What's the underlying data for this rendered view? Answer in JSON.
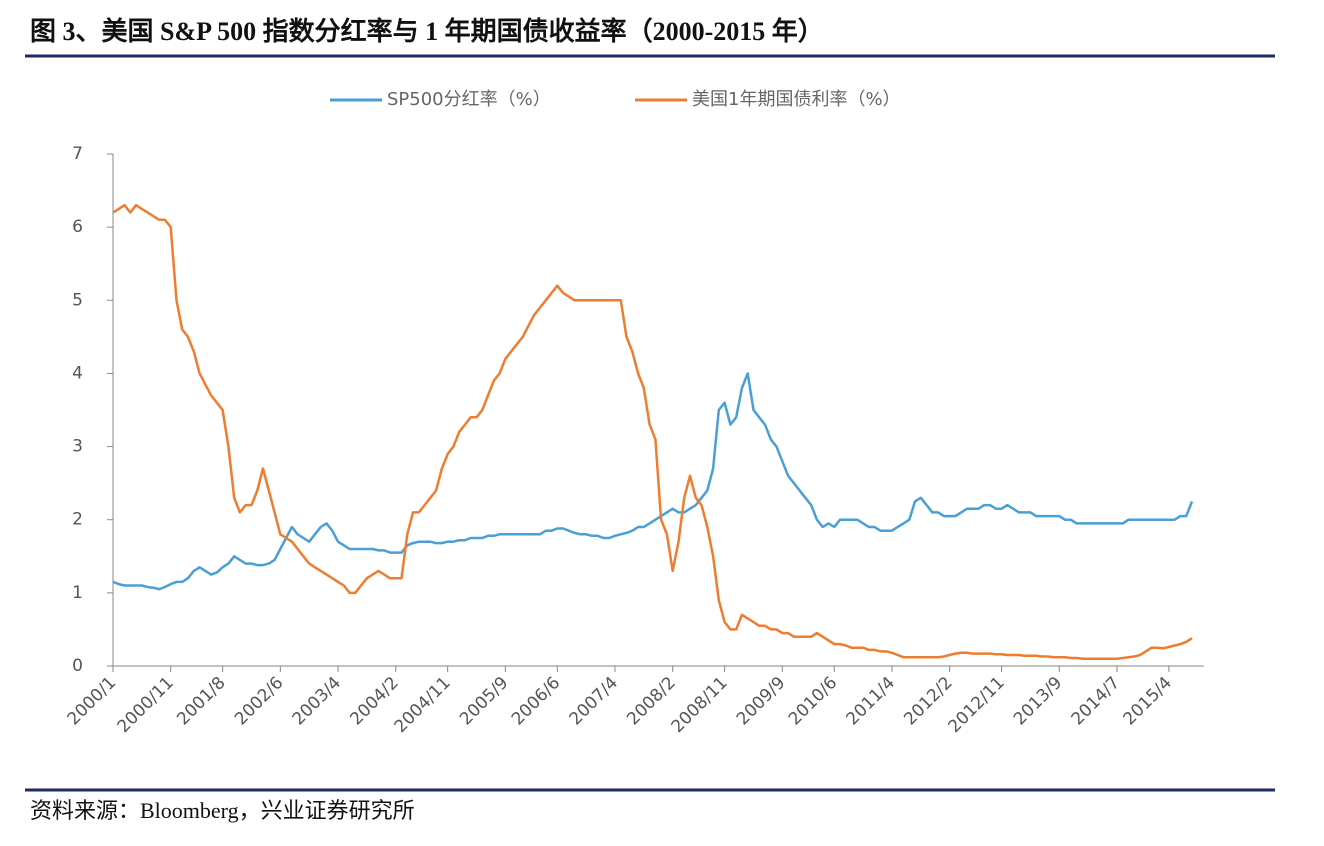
{
  "chart_data": {
    "type": "line",
    "title": "图 3、美国 S&P 500 指数分红率与 1 年期国债收益率（2000-2015 年）",
    "source": "资料来源：Bloomberg，兴业证券研究所",
    "categories": [
      "2000/1",
      null,
      null,
      null,
      null,
      null,
      null,
      null,
      null,
      null,
      "2000/11",
      null,
      null,
      null,
      null,
      null,
      null,
      null,
      null,
      "2001/8",
      null,
      null,
      null,
      null,
      null,
      null,
      null,
      null,
      null,
      "2002/6",
      null,
      null,
      null,
      null,
      null,
      null,
      null,
      null,
      null,
      "2003/4",
      null,
      null,
      null,
      null,
      null,
      null,
      null,
      null,
      null,
      "2004/2",
      null,
      null,
      null,
      null,
      null,
      null,
      null,
      null,
      "2004/11",
      null,
      null,
      null,
      null,
      null,
      null,
      null,
      null,
      null,
      "2005/9",
      null,
      null,
      null,
      null,
      null,
      null,
      null,
      null,
      "2006/6",
      null,
      null,
      null,
      null,
      null,
      null,
      null,
      null,
      null,
      "2007/4",
      null,
      null,
      null,
      null,
      null,
      null,
      null,
      null,
      null,
      "2008/2",
      null,
      null,
      null,
      null,
      null,
      null,
      null,
      null,
      "2008/11",
      null,
      null,
      null,
      null,
      null,
      null,
      null,
      null,
      null,
      "2009/9",
      null,
      null,
      null,
      null,
      null,
      null,
      null,
      null,
      "2010/6",
      null,
      null,
      null,
      null,
      null,
      null,
      null,
      null,
      null,
      "2011/4",
      null,
      null,
      null,
      null,
      null,
      null,
      null,
      null,
      null,
      "2012/2",
      null,
      null,
      null,
      null,
      null,
      null,
      null,
      null,
      "2012/11",
      null,
      null,
      null,
      null,
      null,
      null,
      null,
      null,
      null,
      "2013/9",
      null,
      null,
      null,
      null,
      null,
      null,
      null,
      null,
      null,
      "2014/7",
      null,
      null,
      null,
      null,
      null,
      null,
      null,
      null,
      "2015/4",
      null,
      null,
      null,
      null
    ],
    "series": [
      {
        "name": "SP500分红率（%）",
        "color": "#4a9fd4",
        "values": [
          1.15,
          1.12,
          1.1,
          1.1,
          1.1,
          1.1,
          1.08,
          1.07,
          1.05,
          1.08,
          1.12,
          1.15,
          1.15,
          1.2,
          1.3,
          1.35,
          1.3,
          1.25,
          1.28,
          1.35,
          1.4,
          1.5,
          1.45,
          1.4,
          1.4,
          1.38,
          1.38,
          1.4,
          1.45,
          1.6,
          1.75,
          1.9,
          1.8,
          1.75,
          1.7,
          1.8,
          1.9,
          1.95,
          1.85,
          1.7,
          1.65,
          1.6,
          1.6,
          1.6,
          1.6,
          1.6,
          1.58,
          1.58,
          1.55,
          1.55,
          1.55,
          1.65,
          1.68,
          1.7,
          1.7,
          1.7,
          1.68,
          1.68,
          1.7,
          1.7,
          1.72,
          1.72,
          1.75,
          1.75,
          1.75,
          1.78,
          1.78,
          1.8,
          1.8,
          1.8,
          1.8,
          1.8,
          1.8,
          1.8,
          1.8,
          1.85,
          1.85,
          1.88,
          1.88,
          1.85,
          1.82,
          1.8,
          1.8,
          1.78,
          1.78,
          1.75,
          1.75,
          1.78,
          1.8,
          1.82,
          1.85,
          1.9,
          1.9,
          1.95,
          2.0,
          2.05,
          2.1,
          2.15,
          2.1,
          2.1,
          2.15,
          2.2,
          2.3,
          2.4,
          2.7,
          3.5,
          3.6,
          3.3,
          3.4,
          3.8,
          4.0,
          3.5,
          3.4,
          3.3,
          3.1,
          3.0,
          2.8,
          2.6,
          2.5,
          2.4,
          2.3,
          2.2,
          2.0,
          1.9,
          1.95,
          1.9,
          2.0,
          2.0,
          2.0,
          2.0,
          1.95,
          1.9,
          1.9,
          1.85,
          1.85,
          1.85,
          1.9,
          1.95,
          2.0,
          2.25,
          2.3,
          2.2,
          2.1,
          2.1,
          2.05,
          2.05,
          2.05,
          2.1,
          2.15,
          2.15,
          2.15,
          2.2,
          2.2,
          2.15,
          2.15,
          2.2,
          2.15,
          2.1,
          2.1,
          2.1,
          2.05,
          2.05,
          2.05,
          2.05,
          2.05,
          2.0,
          2.0,
          1.95,
          1.95,
          1.95,
          1.95,
          1.95,
          1.95,
          1.95,
          1.95,
          1.95,
          2.0,
          2.0,
          2.0,
          2.0,
          2.0,
          2.0,
          2.0,
          2.0,
          2.0,
          2.05,
          2.05,
          2.25
        ]
      },
      {
        "name": "美国1年期国债利率（%）",
        "color": "#ed7d31",
        "values": [
          6.2,
          6.25,
          6.3,
          6.2,
          6.3,
          6.25,
          6.2,
          6.15,
          6.1,
          6.1,
          6.0,
          5.0,
          4.6,
          4.5,
          4.3,
          4.0,
          3.85,
          3.7,
          3.6,
          3.5,
          3.0,
          2.3,
          2.1,
          2.2,
          2.2,
          2.4,
          2.7,
          2.4,
          2.1,
          1.8,
          1.75,
          1.7,
          1.6,
          1.5,
          1.4,
          1.35,
          1.3,
          1.25,
          1.2,
          1.15,
          1.1,
          1.0,
          1.0,
          1.1,
          1.2,
          1.25,
          1.3,
          1.25,
          1.2,
          1.2,
          1.2,
          1.8,
          2.1,
          2.1,
          2.2,
          2.3,
          2.4,
          2.7,
          2.9,
          3.0,
          3.2,
          3.3,
          3.4,
          3.4,
          3.5,
          3.7,
          3.9,
          4.0,
          4.2,
          4.3,
          4.4,
          4.5,
          4.65,
          4.8,
          4.9,
          5.0,
          5.1,
          5.2,
          5.1,
          5.05,
          5.0,
          5.0,
          5.0,
          5.0,
          5.0,
          5.0,
          5.0,
          5.0,
          5.0,
          4.5,
          4.3,
          4.0,
          3.8,
          3.3,
          3.1,
          2.0,
          1.8,
          1.3,
          1.7,
          2.3,
          2.6,
          2.3,
          2.2,
          1.9,
          1.5,
          0.9,
          0.6,
          0.5,
          0.5,
          0.7,
          0.65,
          0.6,
          0.55,
          0.55,
          0.5,
          0.5,
          0.45,
          0.45,
          0.4,
          0.4,
          0.4,
          0.4,
          0.45,
          0.4,
          0.35,
          0.3,
          0.3,
          0.28,
          0.25,
          0.25,
          0.25,
          0.22,
          0.22,
          0.2,
          0.2,
          0.18,
          0.15,
          0.12,
          0.12,
          0.12,
          0.12,
          0.12,
          0.12,
          0.12,
          0.13,
          0.15,
          0.17,
          0.18,
          0.18,
          0.17,
          0.17,
          0.17,
          0.17,
          0.16,
          0.16,
          0.15,
          0.15,
          0.15,
          0.14,
          0.14,
          0.14,
          0.13,
          0.13,
          0.12,
          0.12,
          0.12,
          0.11,
          0.11,
          0.1,
          0.1,
          0.1,
          0.1,
          0.1,
          0.1,
          0.1,
          0.11,
          0.12,
          0.13,
          0.15,
          0.2,
          0.25,
          0.25,
          0.24,
          0.26,
          0.28,
          0.3,
          0.33,
          0.38
        ]
      }
    ],
    "ylim": [
      0,
      7
    ],
    "yticks": [
      0,
      1,
      2,
      3,
      4,
      5,
      6,
      7
    ],
    "grid": false,
    "legend": "top"
  }
}
